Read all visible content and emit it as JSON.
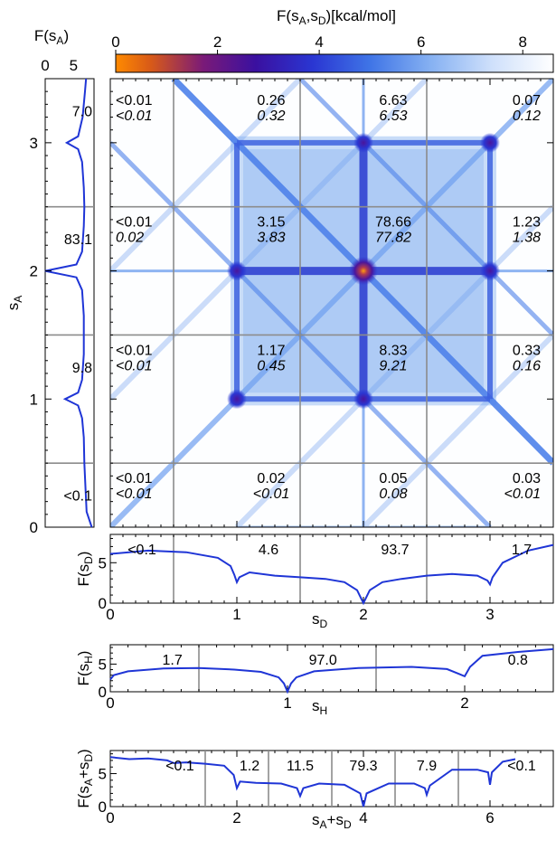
{
  "colorbar": {
    "label": "F(s_A,s_D)[kcal/mol]",
    "ticks": [
      "0",
      "2",
      "4",
      "6",
      "8"
    ],
    "range": [
      0,
      8.6
    ],
    "colors": [
      "#ff8a00",
      "#e05a10",
      "#8e1a6e",
      "#3b0f9e",
      "#2a2fd0",
      "#3a6be0",
      "#7faaf0",
      "#c9dcfa",
      "#ffffff"
    ]
  },
  "main": {
    "xlabel": "",
    "ylabel": "s_A",
    "ytick_labels": [
      "0",
      "1",
      "2",
      "3"
    ],
    "cells": [
      {
        "row": 3,
        "col": 0,
        "a": "<0.01",
        "b": "<0.01"
      },
      {
        "row": 3,
        "col": 1,
        "a": "0.26",
        "b": "0.32"
      },
      {
        "row": 3,
        "col": 2,
        "a": "6.63",
        "b": "6.53"
      },
      {
        "row": 3,
        "col": 3,
        "a": "0.07",
        "b": "0.12"
      },
      {
        "row": 2,
        "col": 0,
        "a": "<0.01",
        "b": "0.02"
      },
      {
        "row": 2,
        "col": 1,
        "a": "3.15",
        "b": "3.83"
      },
      {
        "row": 2,
        "col": 2,
        "a": "78.66",
        "b": "77.82"
      },
      {
        "row": 2,
        "col": 3,
        "a": "1.23",
        "b": "1.38"
      },
      {
        "row": 1,
        "col": 0,
        "a": "<0.01",
        "b": "<0.01"
      },
      {
        "row": 1,
        "col": 1,
        "a": "1.17",
        "b": "0.45"
      },
      {
        "row": 1,
        "col": 2,
        "a": "8.33",
        "b": "9.21"
      },
      {
        "row": 1,
        "col": 3,
        "a": "0.33",
        "b": "0.16"
      },
      {
        "row": 0,
        "col": 0,
        "a": "<0.01",
        "b": "<0.01"
      },
      {
        "row": 0,
        "col": 1,
        "a": "0.02",
        "b": "<0.01"
      },
      {
        "row": 0,
        "col": 2,
        "a": "0.05",
        "b": "0.08"
      },
      {
        "row": 0,
        "col": 3,
        "a": "0.03",
        "b": "<0.01"
      }
    ]
  },
  "side_panel": {
    "title": "F(s_A)",
    "xtick_labels": [
      "0",
      "5"
    ],
    "region_labels": [
      "7.0",
      "83.1",
      "9.8",
      "<0.1"
    ]
  },
  "chart_data": [
    {
      "type": "heatmap",
      "title": "",
      "colorbar_label": "F(s_A,s_D)[kcal/mol]",
      "xlim": [
        0,
        3.5
      ],
      "ylim": [
        0,
        3.5
      ],
      "ylabel": "s_A",
      "minima": [
        {
          "s_D": 2,
          "s_A": 2,
          "F": 0
        },
        {
          "s_D": 1,
          "s_A": 1,
          "F": 3.0
        },
        {
          "s_D": 3,
          "s_A": 3,
          "F": 3.0
        },
        {
          "s_D": 2,
          "s_A": 1,
          "F": 2.5
        },
        {
          "s_D": 2,
          "s_A": 3,
          "F": 2.5
        },
        {
          "s_D": 1,
          "s_A": 2,
          "F": 2.5
        },
        {
          "s_D": 3,
          "s_A": 2,
          "F": 2.5
        }
      ]
    },
    {
      "type": "line",
      "ylabel": "F(s_A)",
      "xlim": [
        0,
        8.6
      ],
      "ylim": [
        0,
        3.5
      ],
      "x_ticks": [
        0,
        5
      ],
      "y_ticks": [
        0,
        1,
        2,
        3
      ],
      "points": [
        [
          8.2,
          0.0
        ],
        [
          7.3,
          0.12
        ],
        [
          7.1,
          0.3
        ],
        [
          6.9,
          0.5
        ],
        [
          6.8,
          0.7
        ],
        [
          6.5,
          0.85
        ],
        [
          5.8,
          0.95
        ],
        [
          3.5,
          1.0
        ],
        [
          5.8,
          1.05
        ],
        [
          6.5,
          1.15
        ],
        [
          6.8,
          1.35
        ],
        [
          6.8,
          1.5
        ],
        [
          6.8,
          1.65
        ],
        [
          6.5,
          1.85
        ],
        [
          5.5,
          1.95
        ],
        [
          0.0,
          2.0
        ],
        [
          5.5,
          2.05
        ],
        [
          6.5,
          2.15
        ],
        [
          6.8,
          2.35
        ],
        [
          6.9,
          2.5
        ],
        [
          6.8,
          2.65
        ],
        [
          6.5,
          2.85
        ],
        [
          5.8,
          2.95
        ],
        [
          3.8,
          3.0
        ],
        [
          5.8,
          3.05
        ],
        [
          6.6,
          3.2
        ],
        [
          7.0,
          3.4
        ],
        [
          7.2,
          3.5
        ]
      ],
      "annotations": [
        {
          "label": "7.0",
          "y": 3.25
        },
        {
          "label": "83.1",
          "y": 2.25
        },
        {
          "label": "9.8",
          "y": 1.25
        },
        {
          "label": "<0.1",
          "y": 0.25
        }
      ]
    },
    {
      "type": "line",
      "xlabel": "s_D",
      "ylabel": "F(s_D)",
      "xlim": [
        0,
        3.5
      ],
      "ylim": [
        0,
        8.5
      ],
      "x_ticks": [
        0,
        1,
        2,
        3
      ],
      "y_ticks": [
        0,
        5
      ],
      "dividers": [
        0.5,
        1.5,
        2.5
      ],
      "points": [
        [
          0.0,
          6.1
        ],
        [
          0.3,
          6.5
        ],
        [
          0.6,
          6.3
        ],
        [
          0.85,
          5.6
        ],
        [
          0.95,
          4.6
        ],
        [
          0.98,
          3.5
        ],
        [
          1.0,
          2.6
        ],
        [
          1.02,
          3.2
        ],
        [
          1.1,
          3.8
        ],
        [
          1.3,
          3.4
        ],
        [
          1.5,
          3.2
        ],
        [
          1.7,
          3.0
        ],
        [
          1.85,
          2.6
        ],
        [
          1.95,
          1.6
        ],
        [
          2.0,
          0.0
        ],
        [
          2.05,
          1.6
        ],
        [
          2.15,
          2.6
        ],
        [
          2.3,
          3.0
        ],
        [
          2.5,
          3.4
        ],
        [
          2.7,
          3.6
        ],
        [
          2.9,
          3.4
        ],
        [
          2.98,
          2.8
        ],
        [
          3.0,
          2.3
        ],
        [
          3.02,
          3.2
        ],
        [
          3.1,
          5.0
        ],
        [
          3.3,
          6.5
        ],
        [
          3.5,
          7.2
        ]
      ],
      "annotations": [
        {
          "label": "<0.1",
          "x": 0.25
        },
        {
          "label": "4.6",
          "x": 1.25
        },
        {
          "label": "93.7",
          "x": 2.25
        },
        {
          "label": "1.7",
          "x": 3.25
        }
      ]
    },
    {
      "type": "line",
      "xlabel": "s_H",
      "ylabel": "F(s_H)",
      "xlim": [
        0,
        2.5
      ],
      "ylim": [
        0,
        8.5
      ],
      "x_ticks": [
        0,
        1,
        2
      ],
      "y_ticks": [
        0,
        5
      ],
      "dividers": [
        0.5,
        1.5
      ],
      "points": [
        [
          0.0,
          2.2
        ],
        [
          0.02,
          3.0
        ],
        [
          0.1,
          3.7
        ],
        [
          0.3,
          4.2
        ],
        [
          0.5,
          4.3
        ],
        [
          0.7,
          4.0
        ],
        [
          0.85,
          3.6
        ],
        [
          0.95,
          2.6
        ],
        [
          0.98,
          1.5
        ],
        [
          1.0,
          0.0
        ],
        [
          1.02,
          1.5
        ],
        [
          1.05,
          2.6
        ],
        [
          1.15,
          3.7
        ],
        [
          1.4,
          4.3
        ],
        [
          1.7,
          4.5
        ],
        [
          1.9,
          4.1
        ],
        [
          1.97,
          3.2
        ],
        [
          2.0,
          2.8
        ],
        [
          2.03,
          4.5
        ],
        [
          2.1,
          6.5
        ],
        [
          2.3,
          7.2
        ],
        [
          2.5,
          7.7
        ]
      ],
      "annotations": [
        {
          "label": "1.7",
          "x": 0.35
        },
        {
          "label": "97.0",
          "x": 1.2
        },
        {
          "label": "0.8",
          "x": 2.3
        }
      ]
    },
    {
      "type": "line",
      "xlabel": "s_A+s_D",
      "ylabel": "F(s_A+s_D)",
      "xlim": [
        0,
        7
      ],
      "ylim": [
        0,
        8.5
      ],
      "x_ticks": [
        0,
        2,
        4,
        6
      ],
      "y_ticks": [
        0,
        5
      ],
      "dividers": [
        1.5,
        2.5,
        3.5,
        4.5,
        5.5
      ],
      "points": [
        [
          0.0,
          7.5
        ],
        [
          0.3,
          7.2
        ],
        [
          0.6,
          7.3
        ],
        [
          0.9,
          7.0
        ],
        [
          1.0,
          6.6
        ],
        [
          1.2,
          6.7
        ],
        [
          1.5,
          6.5
        ],
        [
          1.8,
          6.2
        ],
        [
          1.95,
          4.8
        ],
        [
          2.0,
          2.8
        ],
        [
          2.05,
          3.8
        ],
        [
          2.3,
          3.6
        ],
        [
          2.7,
          3.5
        ],
        [
          2.95,
          2.8
        ],
        [
          3.0,
          1.6
        ],
        [
          3.05,
          2.8
        ],
        [
          3.3,
          3.5
        ],
        [
          3.7,
          3.3
        ],
        [
          3.95,
          2.0
        ],
        [
          4.0,
          0.0
        ],
        [
          4.05,
          2.0
        ],
        [
          4.4,
          3.5
        ],
        [
          4.8,
          3.5
        ],
        [
          4.97,
          2.8
        ],
        [
          5.0,
          1.8
        ],
        [
          5.05,
          3.2
        ],
        [
          5.4,
          5.6
        ],
        [
          5.8,
          5.6
        ],
        [
          5.97,
          5.2
        ],
        [
          6.0,
          3.3
        ],
        [
          6.03,
          5.2
        ],
        [
          6.2,
          6.8
        ],
        [
          6.4,
          7.2
        ]
      ],
      "annotations": [
        {
          "label": "<0.1",
          "x": 1.1
        },
        {
          "label": "1.2",
          "x": 2.2
        },
        {
          "label": "11.5",
          "x": 3.0
        },
        {
          "label": "79.3",
          "x": 4.0
        },
        {
          "label": "7.9",
          "x": 5.0
        },
        {
          "label": "<0.1",
          "x": 6.5
        }
      ]
    }
  ]
}
